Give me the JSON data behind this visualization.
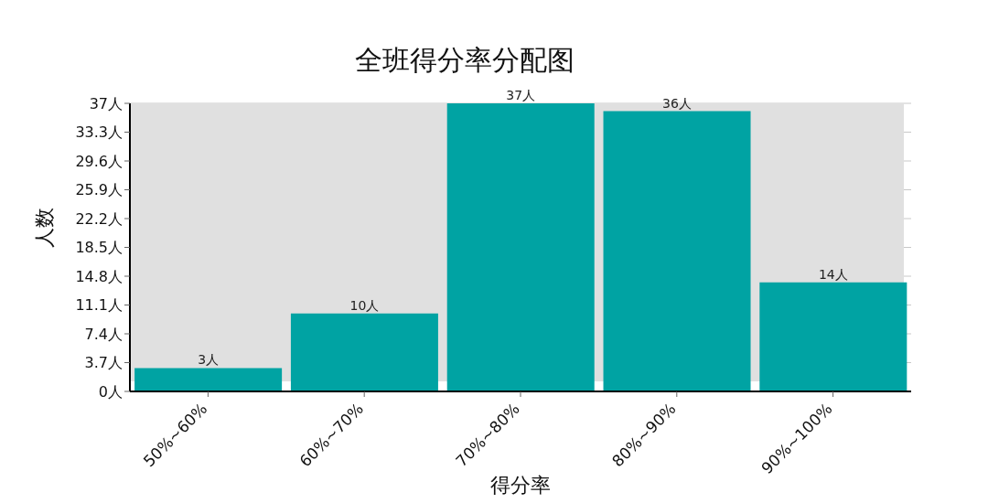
{
  "chart_data": {
    "type": "bar",
    "title": "全班得分率分配图",
    "xlabel": "得分率",
    "ylabel": "人数",
    "categories": [
      "50%~60%",
      "60%~70%",
      "70%~80%",
      "80%~90%",
      "90%~100%"
    ],
    "values": [
      3,
      10,
      37,
      36,
      14
    ],
    "value_labels": [
      "3人",
      "10人",
      "37人",
      "36人",
      "14人"
    ],
    "color": "#00a3a3",
    "ylim": [
      0,
      37
    ],
    "yticks": [
      {
        "value": 0,
        "label": "0人"
      },
      {
        "value": 3.7,
        "label": "3.7人"
      },
      {
        "value": 7.4,
        "label": "7.4人"
      },
      {
        "value": 11.1,
        "label": "11.1人"
      },
      {
        "value": 14.8,
        "label": "14.8人"
      },
      {
        "value": 18.5,
        "label": "18.5人"
      },
      {
        "value": 22.2,
        "label": "22.2人"
      },
      {
        "value": 25.9,
        "label": "25.9人"
      },
      {
        "value": 29.6,
        "label": "29.6人"
      },
      {
        "value": 33.3,
        "label": "33.3人"
      },
      {
        "value": 37,
        "label": "37人"
      }
    ],
    "grid": "y",
    "legend": false
  }
}
